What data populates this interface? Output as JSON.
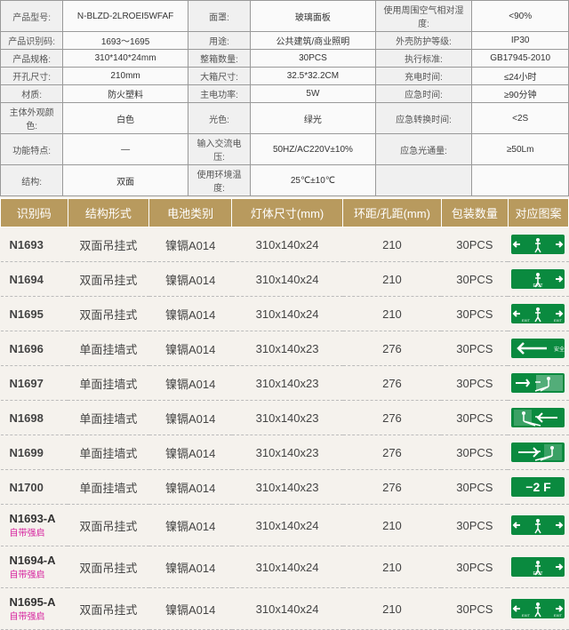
{
  "spec": {
    "rows": [
      [
        {
          "l": "产品型号:",
          "v": "N-BLZD-2LROEI5WFAF"
        },
        {
          "l": "面罩:",
          "v": "玻璃面板"
        },
        {
          "l": "使用周围空气相对湿度:",
          "v": "<90%"
        }
      ],
      [
        {
          "l": "产品识别码:",
          "v": "1693～1695"
        },
        {
          "l": "用途:",
          "v": "公共建筑/商业照明"
        },
        {
          "l": "外壳防护等级:",
          "v": "IP30"
        }
      ],
      [
        {
          "l": "产品规格:",
          "v": "310*140*24mm"
        },
        {
          "l": "整箱数量:",
          "v": "30PCS"
        },
        {
          "l": "执行标准:",
          "v": "GB17945-2010"
        }
      ],
      [
        {
          "l": "开孔尺寸:",
          "v": "210mm"
        },
        {
          "l": "大箱尺寸:",
          "v": "32.5*32.2CM"
        },
        {
          "l": "充电时间:",
          "v": "≤24小时"
        }
      ],
      [
        {
          "l": "材质:",
          "v": "防火塑料"
        },
        {
          "l": "主电功率:",
          "v": "5W"
        },
        {
          "l": "应急时间:",
          "v": "≥90分钟"
        }
      ],
      [
        {
          "l": "主体外观颜色:",
          "v": "白色"
        },
        {
          "l": "光色:",
          "v": "绿光"
        },
        {
          "l": "应急转换时间:",
          "v": "<2S"
        }
      ],
      [
        {
          "l": "功能特点:",
          "v": "—"
        },
        {
          "l": "输入交流电压:",
          "v": "50HZ/AC220V±10%"
        },
        {
          "l": "应急光通量:",
          "v": "≥50Lm"
        }
      ],
      [
        {
          "l": "结构:",
          "v": "双面"
        },
        {
          "l": "使用环境温度:",
          "v": "25℃±10℃"
        },
        {
          "l": "",
          "v": ""
        }
      ]
    ]
  },
  "main": {
    "headers": [
      "识别码",
      "结构形式",
      "电池类别",
      "灯体尺寸(mm)",
      "环距/孔距(mm)",
      "包装数量",
      "对应图案"
    ],
    "sign_bg": "#0a8a3f",
    "rows": [
      {
        "code": "N1693",
        "sub": "",
        "form": "双面吊挂式",
        "bat": "镍镉A014",
        "size": "310x140x24",
        "dist": "210",
        "qty": "30PCS",
        "sign": "left-right"
      },
      {
        "code": "N1694",
        "sub": "",
        "form": "双面吊挂式",
        "bat": "镍镉A014",
        "size": "310x140x24",
        "dist": "210",
        "qty": "30PCS",
        "sign": "exit-right"
      },
      {
        "code": "N1695",
        "sub": "",
        "form": "双面吊挂式",
        "bat": "镍镉A014",
        "size": "310x140x24",
        "dist": "210",
        "qty": "30PCS",
        "sign": "exit-both"
      },
      {
        "code": "N1696",
        "sub": "",
        "form": "单面挂墙式",
        "bat": "镍镉A014",
        "size": "310x140x23",
        "dist": "276",
        "qty": "30PCS",
        "sign": "left-arrow"
      },
      {
        "code": "N1697",
        "sub": "",
        "form": "单面挂墙式",
        "bat": "镍镉A014",
        "size": "310x140x23",
        "dist": "276",
        "qty": "30PCS",
        "sign": "right-man"
      },
      {
        "code": "N1698",
        "sub": "",
        "form": "单面挂墙式",
        "bat": "镍镉A014",
        "size": "310x140x23",
        "dist": "276",
        "qty": "30PCS",
        "sign": "man-left"
      },
      {
        "code": "N1699",
        "sub": "",
        "form": "单面挂墙式",
        "bat": "镍镉A014",
        "size": "310x140x23",
        "dist": "276",
        "qty": "30PCS",
        "sign": "man-right"
      },
      {
        "code": "N1700",
        "sub": "",
        "form": "单面挂墙式",
        "bat": "镍镉A014",
        "size": "310x140x23",
        "dist": "276",
        "qty": "30PCS",
        "sign": "minus2f"
      },
      {
        "code": "N1693-A",
        "sub": "自带强启",
        "form": "双面吊挂式",
        "bat": "镍镉A014",
        "size": "310x140x24",
        "dist": "210",
        "qty": "30PCS",
        "sign": "left-right"
      },
      {
        "code": "N1694-A",
        "sub": "自带强启",
        "form": "双面吊挂式",
        "bat": "镍镉A014",
        "size": "310x140x24",
        "dist": "210",
        "qty": "30PCS",
        "sign": "exit-right"
      },
      {
        "code": "N1695-A",
        "sub": "自带强启",
        "form": "双面吊挂式",
        "bat": "镍镉A014",
        "size": "310x140x24",
        "dist": "210",
        "qty": "30PCS",
        "sign": "exit-both"
      }
    ]
  }
}
